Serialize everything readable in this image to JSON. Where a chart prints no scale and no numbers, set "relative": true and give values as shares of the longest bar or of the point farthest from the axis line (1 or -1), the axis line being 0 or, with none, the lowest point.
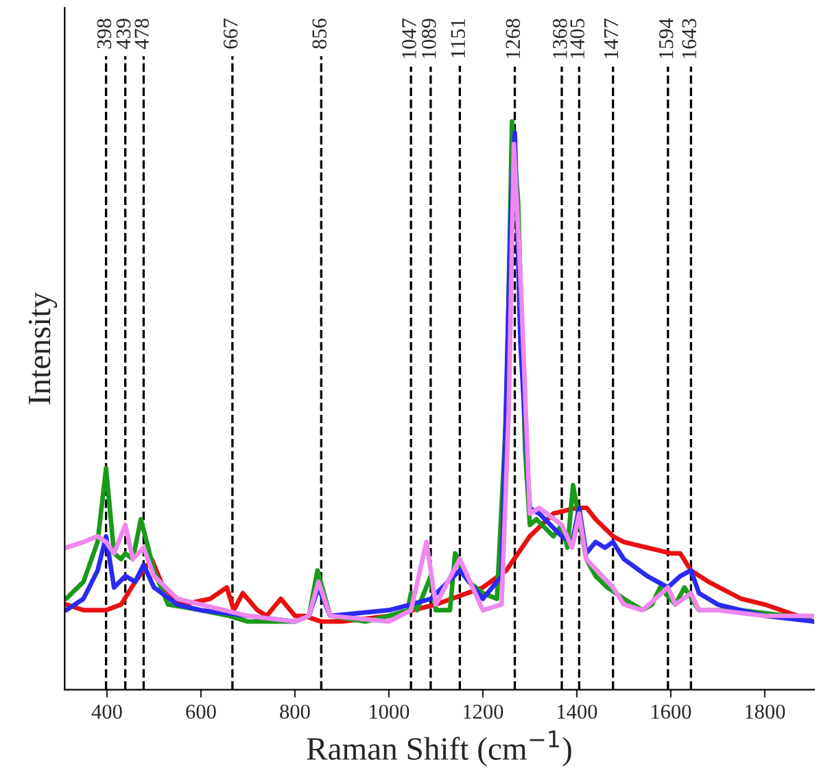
{
  "chart_data": {
    "type": "line",
    "xlabel": "Raman Shift (cm$^{−1}$)",
    "ylabel": "Intensity",
    "relative": true,
    "xlim": [
      310,
      1905
    ],
    "xticks": [
      400,
      600,
      800,
      1000,
      1200,
      1400,
      1600,
      1800
    ],
    "grid": false,
    "line_style": "solid",
    "marker": "none",
    "series": [
      {
        "color": "#e81010",
        "x": [
          313,
          350,
          398,
          430,
          460,
          495,
          520,
          560,
          620,
          655,
          670,
          689,
          720,
          740,
          770,
          800,
          820,
          856,
          900,
          1000,
          1100,
          1200,
          1250,
          1300,
          1350,
          1400,
          1421,
          1440,
          1477,
          1500,
          1550,
          1600,
          1620,
          1643,
          1680,
          1750,
          1800,
          1905
        ],
        "values": [
          0.15,
          0.14,
          0.14,
          0.15,
          0.19,
          0.23,
          0.18,
          0.15,
          0.16,
          0.18,
          0.14,
          0.17,
          0.14,
          0.13,
          0.16,
          0.13,
          0.13,
          0.12,
          0.12,
          0.13,
          0.15,
          0.18,
          0.21,
          0.27,
          0.31,
          0.32,
          0.32,
          0.3,
          0.27,
          0.26,
          0.25,
          0.24,
          0.24,
          0.21,
          0.19,
          0.16,
          0.15,
          0.12
        ]
      },
      {
        "color": "#1a9a1a",
        "x": [
          313,
          350,
          380,
          398,
          415,
          430,
          439,
          455,
          472,
          500,
          530,
          600,
          660,
          700,
          800,
          830,
          848,
          875,
          950,
          1000,
          1040,
          1047,
          1060,
          1089,
          1100,
          1130,
          1141,
          1170,
          1200,
          1230,
          1250,
          1262,
          1275,
          1290,
          1300,
          1314,
          1350,
          1368,
          1380,
          1392,
          1420,
          1440,
          1465,
          1500,
          1540,
          1560,
          1577,
          1610,
          1629,
          1660,
          1750,
          1850,
          1905
        ],
        "values": [
          0.16,
          0.19,
          0.26,
          0.39,
          0.24,
          0.23,
          0.24,
          0.23,
          0.3,
          0.21,
          0.15,
          0.14,
          0.13,
          0.12,
          0.12,
          0.13,
          0.21,
          0.13,
          0.12,
          0.13,
          0.14,
          0.17,
          0.14,
          0.2,
          0.14,
          0.14,
          0.24,
          0.19,
          0.17,
          0.16,
          0.49,
          1.0,
          0.86,
          0.42,
          0.29,
          0.3,
          0.27,
          0.29,
          0.25,
          0.36,
          0.23,
          0.2,
          0.18,
          0.16,
          0.14,
          0.15,
          0.18,
          0.15,
          0.18,
          0.14,
          0.14,
          0.13,
          0.12
        ]
      },
      {
        "color": "#2a2af0",
        "x": [
          313,
          350,
          380,
          398,
          415,
          439,
          460,
          478,
          500,
          550,
          600,
          700,
          800,
          830,
          850,
          875,
          1000,
          1047,
          1089,
          1151,
          1200,
          1240,
          1260,
          1268,
          1280,
          1300,
          1320,
          1368,
          1390,
          1405,
          1420,
          1440,
          1460,
          1477,
          1500,
          1550,
          1594,
          1620,
          1643,
          1660,
          1700,
          1800,
          1905
        ],
        "values": [
          0.14,
          0.16,
          0.21,
          0.27,
          0.18,
          0.2,
          0.19,
          0.22,
          0.18,
          0.15,
          0.14,
          0.13,
          0.12,
          0.13,
          0.18,
          0.13,
          0.14,
          0.15,
          0.16,
          0.21,
          0.16,
          0.2,
          0.85,
          0.98,
          0.61,
          0.32,
          0.31,
          0.27,
          0.26,
          0.32,
          0.24,
          0.26,
          0.25,
          0.26,
          0.23,
          0.2,
          0.18,
          0.2,
          0.21,
          0.17,
          0.15,
          0.13,
          0.12
        ]
      },
      {
        "color": "#ee88ee",
        "x": [
          313,
          350,
          380,
          398,
          415,
          439,
          455,
          478,
          500,
          550,
          600,
          700,
          800,
          830,
          850,
          875,
          1000,
          1047,
          1080,
          1100,
          1151,
          1200,
          1240,
          1255,
          1266,
          1280,
          1300,
          1320,
          1368,
          1390,
          1405,
          1420,
          1477,
          1500,
          1540,
          1594,
          1610,
          1643,
          1660,
          1700,
          1800,
          1905
        ],
        "values": [
          0.25,
          0.26,
          0.27,
          0.26,
          0.24,
          0.29,
          0.23,
          0.25,
          0.2,
          0.16,
          0.15,
          0.13,
          0.12,
          0.13,
          0.19,
          0.13,
          0.12,
          0.14,
          0.26,
          0.15,
          0.23,
          0.14,
          0.15,
          0.49,
          0.96,
          0.73,
          0.31,
          0.32,
          0.29,
          0.25,
          0.31,
          0.23,
          0.18,
          0.15,
          0.14,
          0.18,
          0.15,
          0.17,
          0.14,
          0.14,
          0.13,
          0.13
        ]
      }
    ],
    "ref_lines": [
      {
        "axis": "x",
        "value": 398,
        "label": "398",
        "color": "#000000",
        "line_style": "dashed"
      },
      {
        "axis": "x",
        "value": 439,
        "label": "439",
        "color": "#000000",
        "line_style": "dashed"
      },
      {
        "axis": "x",
        "value": 478,
        "label": "478",
        "color": "#000000",
        "line_style": "dashed"
      },
      {
        "axis": "x",
        "value": 667,
        "label": "667",
        "color": "#000000",
        "line_style": "dashed"
      },
      {
        "axis": "x",
        "value": 856,
        "label": "856",
        "color": "#000000",
        "line_style": "dashed"
      },
      {
        "axis": "x",
        "value": 1047,
        "label": "1047",
        "color": "#000000",
        "line_style": "dashed"
      },
      {
        "axis": "x",
        "value": 1089,
        "label": "1089",
        "color": "#000000",
        "line_style": "dashed"
      },
      {
        "axis": "x",
        "value": 1151,
        "label": "1151",
        "color": "#000000",
        "line_style": "dashed"
      },
      {
        "axis": "x",
        "value": 1268,
        "label": "1268",
        "color": "#000000",
        "line_style": "dashed"
      },
      {
        "axis": "x",
        "value": 1368,
        "label": "1368",
        "color": "#000000",
        "line_style": "dashed"
      },
      {
        "axis": "x",
        "value": 1405,
        "label": "1405",
        "color": "#000000",
        "line_style": "dashed"
      },
      {
        "axis": "x",
        "value": 1477,
        "label": "1477",
        "color": "#000000",
        "line_style": "dashed"
      },
      {
        "axis": "x",
        "value": 1594,
        "label": "1594",
        "color": "#000000",
        "line_style": "dashed"
      },
      {
        "axis": "x",
        "value": 1643,
        "label": "1643",
        "color": "#000000",
        "line_style": "dashed"
      }
    ]
  }
}
